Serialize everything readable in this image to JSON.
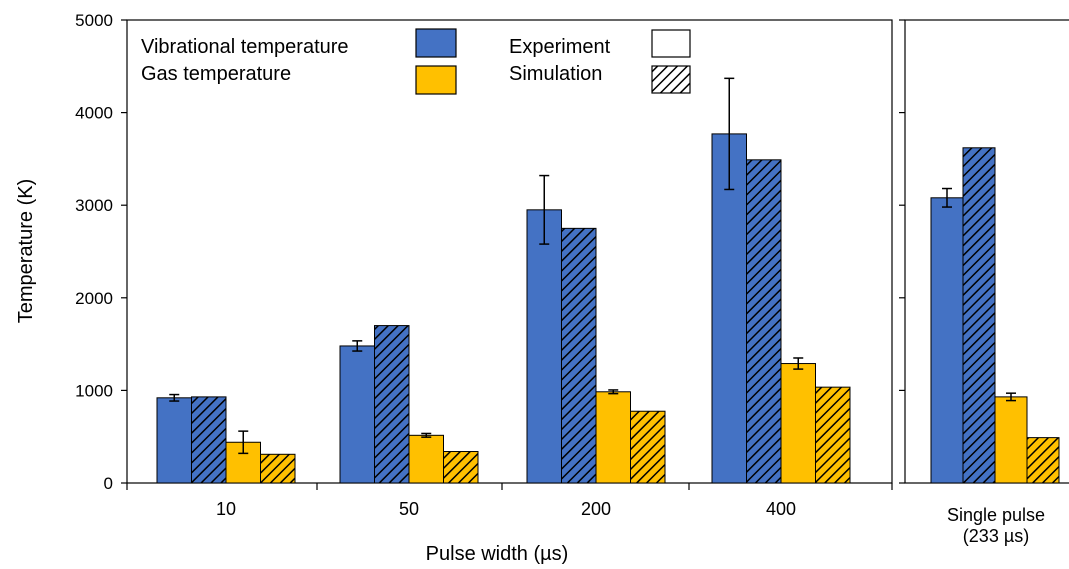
{
  "chart_data": [
    {
      "type": "bar",
      "xlabel": "Pulse width (µs)",
      "ylabel": "Temperature (K)",
      "ylim": [
        0,
        5000
      ],
      "yticks": [
        0,
        1000,
        2000,
        3000,
        4000,
        5000
      ],
      "grid": false,
      "legend_position": "top",
      "categories": [
        "10",
        "50",
        "200",
        "400"
      ],
      "series": [
        {
          "name": "Vibrational temperature (Experiment)",
          "values": [
            920,
            1480,
            2950,
            3770
          ],
          "errors": [
            35,
            55,
            370,
            600
          ]
        },
        {
          "name": "Vibrational temperature (Simulation)",
          "values": [
            930,
            1700,
            2750,
            3490
          ]
        },
        {
          "name": "Gas temperature (Experiment)",
          "values": [
            440,
            515,
            985,
            1290
          ],
          "errors": [
            120,
            20,
            20,
            60
          ]
        },
        {
          "name": "Gas temperature (Simulation)",
          "values": [
            310,
            340,
            775,
            1035
          ]
        }
      ]
    },
    {
      "type": "bar",
      "xlabel": "",
      "ylabel": "",
      "ylim": [
        0,
        5000
      ],
      "grid": false,
      "categories": [
        "Single pulse (233 µs)"
      ],
      "category_lines": [
        "Single pulse",
        "(233 µs)"
      ],
      "series": [
        {
          "name": "Vibrational temperature (Experiment)",
          "values": [
            3080
          ],
          "errors": [
            100
          ]
        },
        {
          "name": "Vibrational temperature (Simulation)",
          "values": [
            3620
          ]
        },
        {
          "name": "Gas temperature (Experiment)",
          "values": [
            930
          ],
          "errors": [
            40
          ]
        },
        {
          "name": "Gas temperature (Simulation)",
          "values": [
            490
          ]
        }
      ]
    }
  ],
  "legend": {
    "vibrational": "Vibrational temperature",
    "gas": "Gas temperature",
    "experiment": "Experiment",
    "simulation": "Simulation"
  },
  "colors": {
    "vibrational": "#4472C4",
    "gas": "#FFC000",
    "axis": "#000000"
  }
}
